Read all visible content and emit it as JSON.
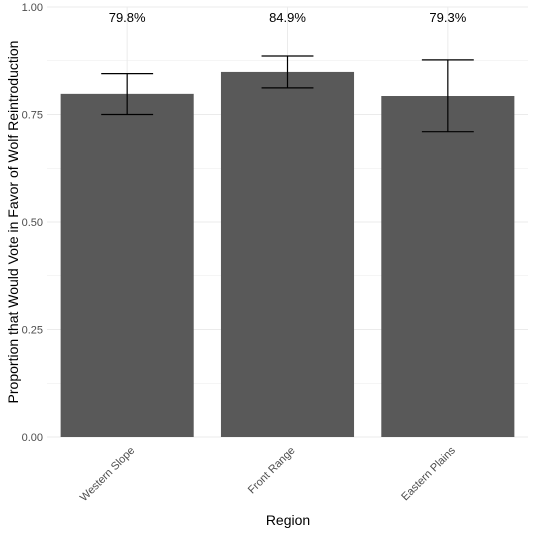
{
  "chart_data": {
    "type": "bar",
    "categories": [
      "Western Slope",
      "Front Range",
      "Eastern Plains"
    ],
    "values": [
      0.798,
      0.849,
      0.793
    ],
    "error_low": [
      0.75,
      0.812,
      0.71
    ],
    "error_high": [
      0.845,
      0.886,
      0.877
    ],
    "data_labels": [
      "79.8%",
      "84.9%",
      "79.3%"
    ],
    "xlabel": "Region",
    "ylabel": "Proportion that Would Vote in Favor of Wolf Reintroduction",
    "ylim": [
      0,
      1
    ],
    "yticks": [
      0,
      0.25,
      0.5,
      0.75,
      1
    ],
    "ytick_labels": [
      "0.00",
      "0.25",
      "0.50",
      "0.75",
      "1.00"
    ],
    "grid": true,
    "colors": {
      "bar": "#595959",
      "grid": "#ebebeb",
      "error_bar": "#000000"
    }
  }
}
